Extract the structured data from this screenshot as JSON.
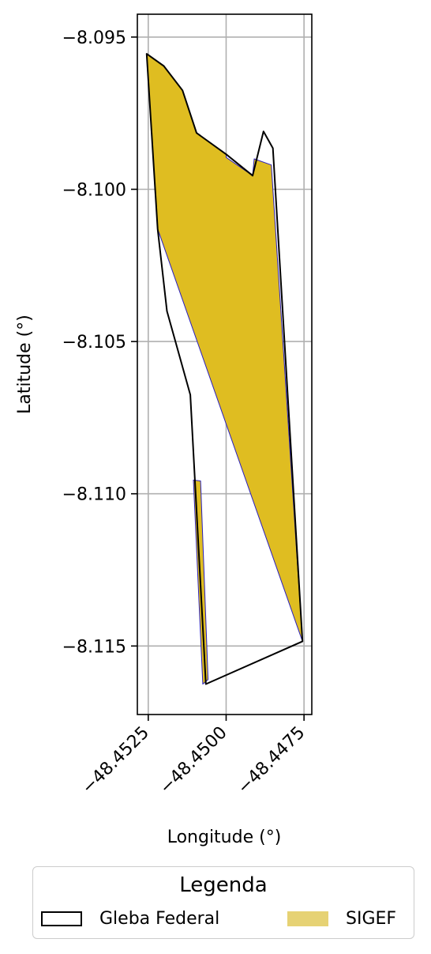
{
  "map": {
    "ylabel": "Latitude (°)",
    "xlabel": "Longitude (°)",
    "yticks": [
      "−8.095",
      "−8.100",
      "−8.105",
      "−8.110",
      "−8.115"
    ],
    "xticks": [
      "−48.4525",
      "−48.4500",
      "−48.4475"
    ],
    "xlim": [
      -48.45285,
      -48.44725
    ],
    "ylim": [
      -8.11725,
      -8.09425
    ],
    "grid": true,
    "xtick_values": [
      -48.4525,
      -48.45,
      -48.4475
    ],
    "ytick_values": [
      -8.095,
      -8.1,
      -8.105,
      -8.11,
      -8.115
    ]
  },
  "layers": {
    "gleba": {
      "name": "Gleba Federal",
      "edge_color": "#000000",
      "fill": "none",
      "coords": [
        [
          -48.45255,
          -8.09555
        ],
        [
          -48.452,
          -8.09595
        ],
        [
          -48.4514,
          -8.09675
        ],
        [
          -48.45095,
          -8.09815
        ],
        [
          -48.45,
          -8.09885
        ],
        [
          -48.44915,
          -8.09955
        ],
        [
          -48.4488,
          -8.0981
        ],
        [
          -48.4485,
          -8.09865
        ],
        [
          -48.44755,
          -8.11485
        ],
        [
          -48.45065,
          -8.11625
        ],
        [
          -48.45115,
          -8.10675
        ],
        [
          -48.4519,
          -8.104
        ],
        [
          -48.4522,
          -8.1013
        ]
      ]
    },
    "sigef": {
      "name": "SIGEF",
      "fill_color": "#dfbd21",
      "legend_color": "#e6d274",
      "edge_color": "#2a1fbf",
      "polygons": [
        [
          [
            -48.45255,
            -8.09555
          ],
          [
            -48.452,
            -8.09595
          ],
          [
            -48.4514,
            -8.09675
          ],
          [
            -48.45095,
            -8.09815
          ],
          [
            -48.45,
            -8.09885
          ],
          [
            -48.45,
            -8.09895
          ],
          [
            -48.44915,
            -8.09955
          ],
          [
            -48.4491,
            -8.099
          ],
          [
            -48.44855,
            -8.0992
          ],
          [
            -48.44755,
            -8.11485
          ],
          [
            -48.4522,
            -8.1013
          ]
        ],
        [
          [
            -48.45105,
            -8.10955
          ],
          [
            -48.45082,
            -8.10958
          ],
          [
            -48.45058,
            -8.1161
          ],
          [
            -48.45075,
            -8.11625
          ]
        ]
      ]
    }
  },
  "legend": {
    "title": "Legenda",
    "items": [
      "Gleba Federal",
      "SIGEF"
    ],
    "placement": "bottom-center"
  }
}
